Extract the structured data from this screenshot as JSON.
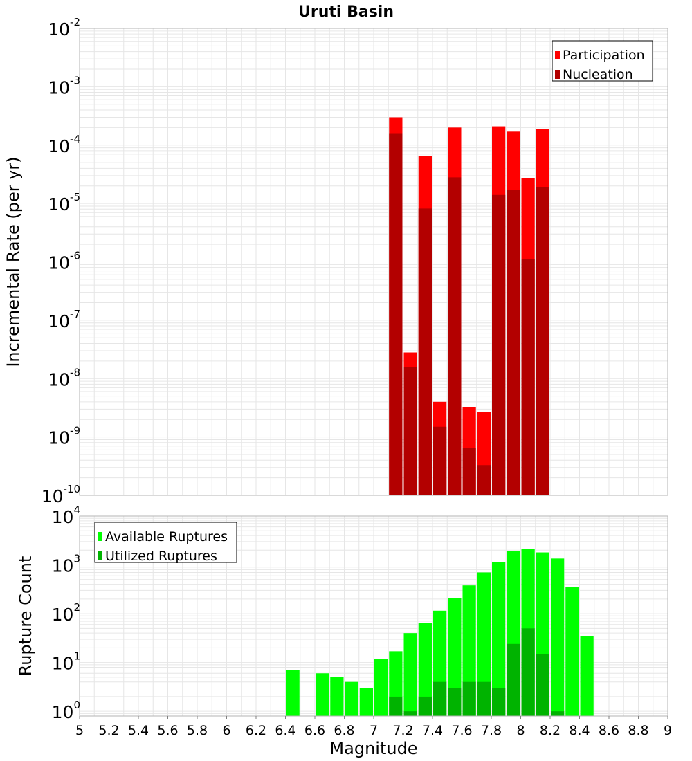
{
  "title": "Uruti Basin",
  "colors": {
    "participation": "#ff0000",
    "nucleation": "#b30000",
    "available": "#00ff00",
    "utilized": "#00b300",
    "grid": "#e6e6e6",
    "frame": "#b3b3b3"
  },
  "chart_data": [
    {
      "type": "bar",
      "scale": "log",
      "ylabel": "Incremental Rate (per yr)",
      "ylim": [
        1e-10,
        0.01
      ],
      "xlim": [
        5,
        9
      ],
      "bin_width": 0.1,
      "grid": true,
      "legend_position": "top-right",
      "y_ticks": [
        {
          "base": "10",
          "exp": "-10"
        },
        {
          "base": "10",
          "exp": "-9"
        },
        {
          "base": "10",
          "exp": "-8"
        },
        {
          "base": "10",
          "exp": "-7"
        },
        {
          "base": "10",
          "exp": "-6"
        },
        {
          "base": "10",
          "exp": "-5"
        },
        {
          "base": "10",
          "exp": "-4"
        },
        {
          "base": "10",
          "exp": "-3"
        },
        {
          "base": "10",
          "exp": "-2"
        }
      ],
      "x": [
        7.15,
        7.25,
        7.35,
        7.45,
        7.55,
        7.65,
        7.75,
        7.85,
        7.95,
        8.05,
        8.15
      ],
      "series": [
        {
          "name": "Participation",
          "values": [
            0.0003,
            2.8e-08,
            6.5e-05,
            4e-09,
            0.0002,
            3.2e-09,
            2.7e-09,
            0.00021,
            0.00017,
            2.7e-05,
            0.00019
          ]
        },
        {
          "name": "Nucleation",
          "values": [
            0.00016,
            1.6e-08,
            8.2e-06,
            1.5e-09,
            2.8e-05,
            6.5e-10,
            3.3e-10,
            1.4e-05,
            1.7e-05,
            1.1e-06,
            1.9e-05
          ]
        }
      ]
    },
    {
      "type": "bar",
      "scale": "log",
      "xlabel": "Magnitude",
      "ylabel": "Rupture Count",
      "ylim": [
        0.8,
        10000
      ],
      "xlim": [
        5,
        9
      ],
      "bin_width": 0.1,
      "grid": true,
      "legend_position": "top-left",
      "y_ticks": [
        {
          "base": "10",
          "exp": "0"
        },
        {
          "base": "10",
          "exp": "1"
        },
        {
          "base": "10",
          "exp": "2"
        },
        {
          "base": "10",
          "exp": "3"
        },
        {
          "base": "10",
          "exp": "4"
        }
      ],
      "x_ticks": [
        "5",
        "5.2",
        "5.4",
        "5.6",
        "5.8",
        "6",
        "6.2",
        "6.4",
        "6.6",
        "6.8",
        "7",
        "7.2",
        "7.4",
        "7.6",
        "7.8",
        "8",
        "8.2",
        "8.4",
        "8.6",
        "8.8",
        "9"
      ],
      "x": [
        6.45,
        6.65,
        6.75,
        6.85,
        6.95,
        7.05,
        7.15,
        7.25,
        7.35,
        7.45,
        7.55,
        7.65,
        7.75,
        7.85,
        7.95,
        8.05,
        8.15,
        8.25,
        8.35,
        8.45
      ],
      "series": [
        {
          "name": "Available Ruptures",
          "values": [
            7,
            6,
            5,
            4,
            3,
            12,
            17,
            40,
            65,
            115,
            210,
            380,
            700,
            1150,
            1950,
            2100,
            1800,
            1350,
            350,
            35
          ]
        },
        {
          "name": "Utilized Ruptures",
          "values": [
            0,
            0,
            0,
            0,
            0,
            0,
            2,
            1,
            2,
            4,
            3,
            4,
            4,
            3,
            24,
            50,
            15,
            1,
            0,
            0
          ]
        }
      ]
    }
  ]
}
